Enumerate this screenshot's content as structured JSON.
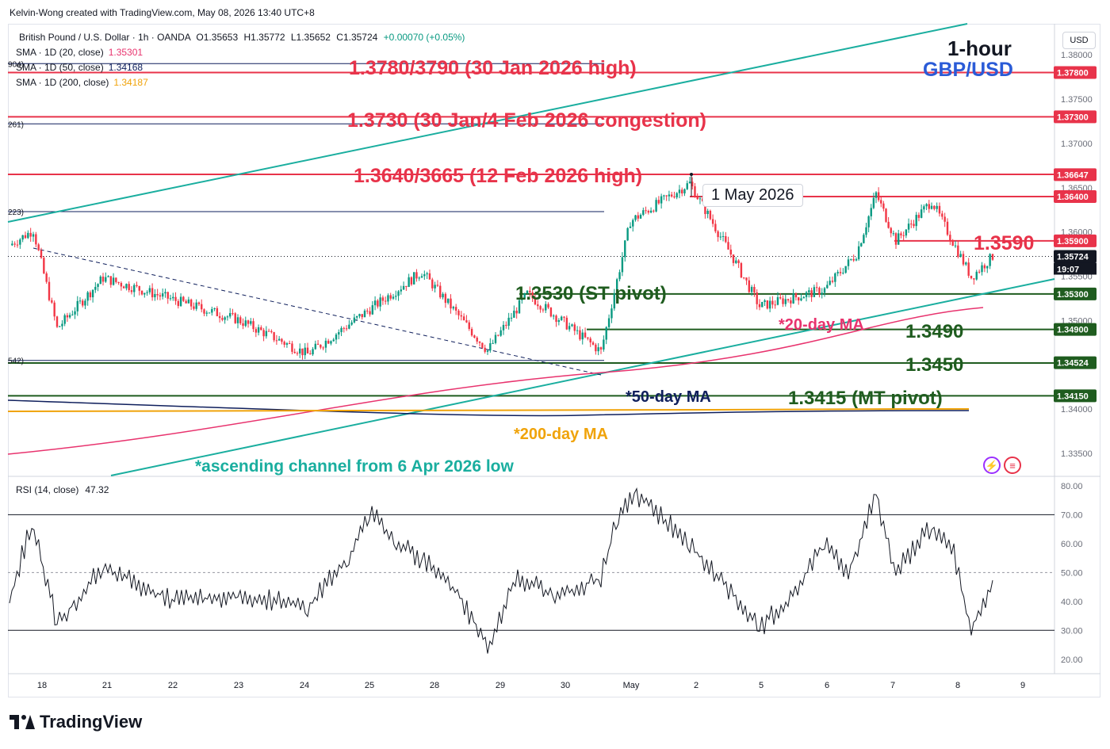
{
  "header": {
    "credit": "Kelvin-Wong created with TradingView.com, May 08, 2026 13:40 UTC+8"
  },
  "legend": {
    "symbol": "British Pound / U.S. Dollar · 1h · OANDA",
    "ohlc": {
      "o": "O1.35653",
      "h": "H1.35772",
      "l": "L1.35652",
      "c": "C1.35724",
      "chg": "+0.00070 (+0.05%)"
    },
    "sma20": {
      "label": "SMA · 1D (20, close)",
      "value": "1.35301"
    },
    "sma50": {
      "label": "SMA · 1D (50, close)",
      "value": "1.34168"
    },
    "sma200": {
      "label": "SMA · 1D (200, close)",
      "value": "1.34187"
    }
  },
  "currency": "USD",
  "title": {
    "timeframe": "1-hour",
    "pair": "GBP/USD"
  },
  "annotations": {
    "r1": "1.3780/3790 (30 Jan 2026 high)",
    "r2": "1.3730 (30 Jan/4 Feb 2026 congestion)",
    "r3": "1.3640/3665 (12 Feb 2026 high)",
    "r4": "1.3590",
    "st_pivot": "1.3530 (ST pivot)",
    "s1": "1.3490",
    "s2": "1.3450",
    "mt_pivot": "1.3415 (MT pivot)",
    "ma20": "*20-day MA",
    "ma50": "*50-day MA",
    "ma200": "*200-day MA",
    "channel": "*ascending channel from 6 Apr 2026 low",
    "callout": "1 May 2026"
  },
  "fib_stubs": [
    "904)",
    "261)",
    "223)",
    "542)"
  ],
  "price_axis": {
    "ticks": [
      "1.38000",
      "1.37500",
      "1.37000",
      "1.36500",
      "1.36000",
      "1.35500",
      "1.35000",
      "1.34500",
      "1.34000",
      "1.33500"
    ],
    "tick_values": [
      1.38,
      1.375,
      1.37,
      1.365,
      1.36,
      1.355,
      1.35,
      1.345,
      1.34,
      1.335
    ],
    "labels": [
      {
        "text": "1.37800",
        "value": 1.378,
        "color": "#e8334a"
      },
      {
        "text": "1.37300",
        "value": 1.373,
        "color": "#e8334a"
      },
      {
        "text": "1.36647",
        "value": 1.36647,
        "color": "#e8334a"
      },
      {
        "text": "1.36400",
        "value": 1.364,
        "color": "#e8334a"
      },
      {
        "text": "1.35900",
        "value": 1.359,
        "color": "#e8334a"
      },
      {
        "text": "1.35724",
        "value": 1.35724,
        "color": "#131722"
      },
      {
        "text": "1.35300",
        "value": 1.353,
        "color": "#1f5c1f"
      },
      {
        "text": "1.34900",
        "value": 1.349,
        "color": "#1f5c1f"
      },
      {
        "text": "1.34524",
        "value": 1.34524,
        "color": "#1f5c1f"
      },
      {
        "text": "1.34150",
        "value": 1.3415,
        "color": "#1f5c1f"
      }
    ],
    "countdown": "19:07"
  },
  "x_axis": {
    "labels": [
      "18",
      "21",
      "22",
      "23",
      "24",
      "25",
      "28",
      "29",
      "30",
      "May",
      "2",
      "5",
      "6",
      "7",
      "8",
      "9"
    ]
  },
  "rsi": {
    "label": "RSI (14, close)",
    "value": "47.32",
    "ticks": [
      "80.00",
      "70.00",
      "60.00",
      "50.00",
      "40.00",
      "30.00",
      "20.00"
    ],
    "tick_values": [
      80,
      70,
      60,
      50,
      40,
      30,
      20
    ],
    "upper": 70,
    "lower": 30,
    "mid": 50
  },
  "logo": "TradingView",
  "colors": {
    "up": "#089981",
    "down": "#f23645",
    "resistance": "#e8334a",
    "support": "#1f5c1f",
    "channel": "#1aae9f",
    "sma20": "#e8336e",
    "sma50": "#0f1f5c",
    "sma200": "#f0a30a"
  },
  "chart_data": {
    "type": "candlestick",
    "title": "GBP/USD 1-hour",
    "x_labels": [
      "18",
      "21",
      "22",
      "23",
      "24",
      "25",
      "28",
      "29",
      "30",
      "May",
      "2",
      "5",
      "6",
      "7",
      "8",
      "9"
    ],
    "ylim": [
      1.3325,
      1.3835
    ],
    "key_path": [
      {
        "x": "Apr 17 (late)",
        "close": 1.3585
      },
      {
        "x": "Apr 18",
        "close": 1.3602
      },
      {
        "x": "Apr 20",
        "close": 1.3491
      },
      {
        "x": "Apr 21",
        "close": 1.3548
      },
      {
        "x": "Apr 23",
        "close": 1.3501
      },
      {
        "x": "Apr 24",
        "close": 1.3462
      },
      {
        "x": "Apr 27",
        "close": 1.3555
      },
      {
        "x": "Apr 29",
        "close": 1.3466
      },
      {
        "x": "Apr 29 (late)",
        "close": 1.353
      },
      {
        "x": "Apr 30",
        "close": 1.3465
      },
      {
        "x": "May 1",
        "close": 1.3612
      },
      {
        "x": "May 1 (high)",
        "close": 1.3655
      },
      {
        "x": "May 2",
        "close": 1.357
      },
      {
        "x": "May 5",
        "close": 1.3516
      },
      {
        "x": "May 6",
        "close": 1.3535
      },
      {
        "x": "May 6 (late)",
        "close": 1.3575
      },
      {
        "x": "May 7",
        "close": 1.3643
      },
      {
        "x": "May 7 (late)",
        "close": 1.359
      },
      {
        "x": "May 8",
        "close": 1.3635
      },
      {
        "x": "May 8 (late)",
        "close": 1.3549
      },
      {
        "x": "May 8 (last)",
        "close": 1.35724
      }
    ],
    "horizontal_levels": [
      1.378,
      1.373,
      1.3665,
      1.364,
      1.359,
      1.353,
      1.349,
      1.3452,
      1.3415
    ],
    "rsi": {
      "ylim": [
        15,
        83
      ],
      "last": 47.32,
      "upper": 70,
      "lower": 30
    }
  }
}
